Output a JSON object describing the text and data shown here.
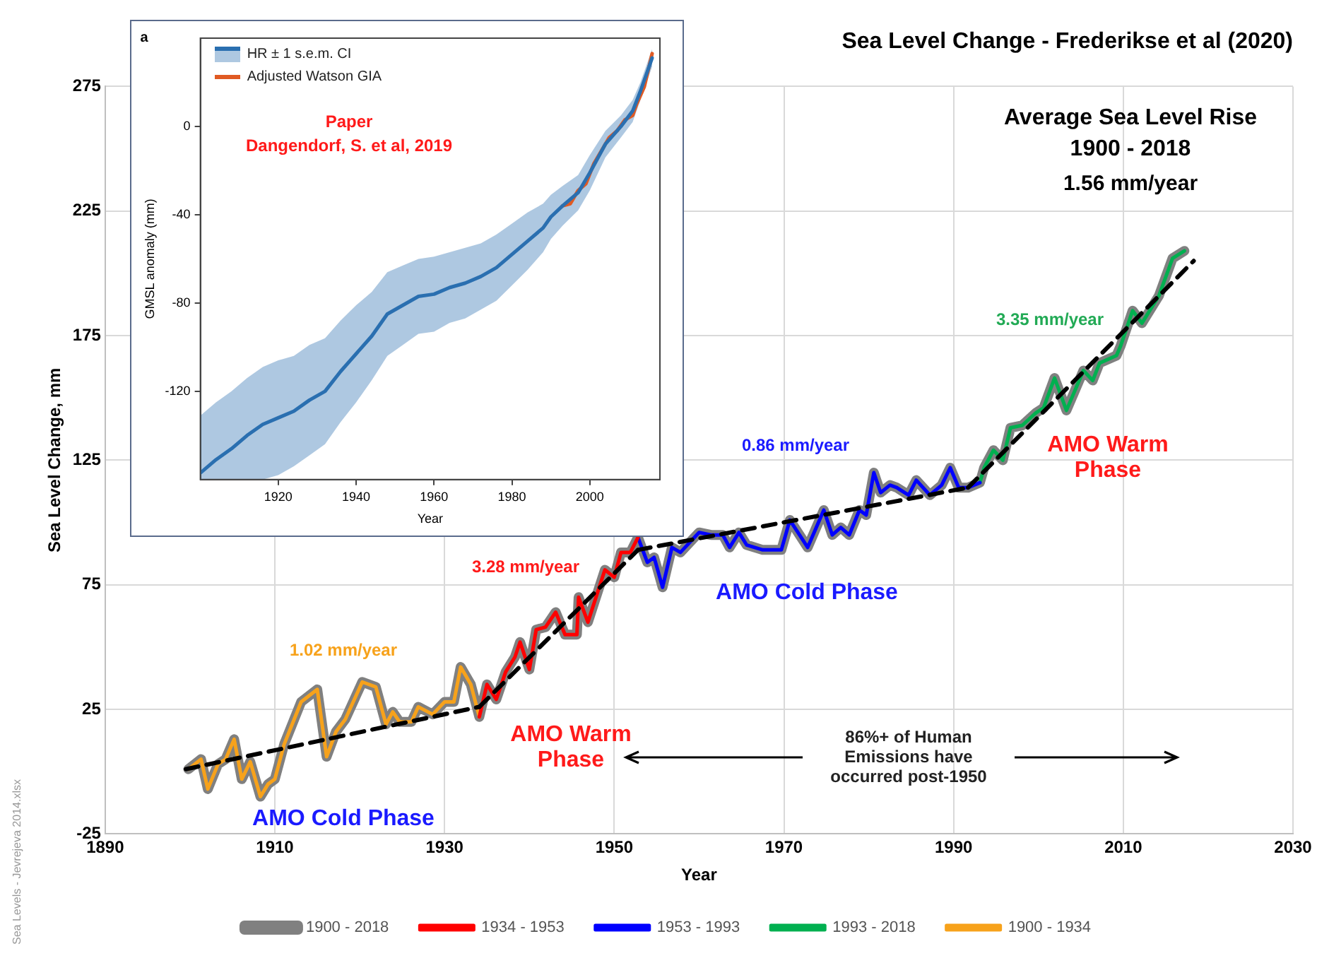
{
  "chart_data": [
    {
      "type": "line",
      "title": "Sea Level Change - Frederikse et al (2020)",
      "xlabel": "Year",
      "ylabel": "Sea Level Change, mm",
      "xlim": [
        1890,
        2030
      ],
      "xticks": [
        1890,
        1910,
        1930,
        1950,
        1970,
        1990,
        2010,
        2030
      ],
      "ylim": [
        -25,
        275
      ],
      "yticks": [
        -25,
        25,
        75,
        125,
        175,
        225,
        275
      ],
      "grid": true,
      "legend": "bottom",
      "marker": "none",
      "series": [
        {
          "name": "1900 - 2018",
          "color": "#808080",
          "x": [
            1899.8,
            1901.3,
            1902.1,
            1903.3,
            1904.2,
            1905.2,
            1906.1,
            1907.1,
            1908.3,
            1909.2,
            1910.0,
            1911.1,
            1913.1,
            1915.0,
            1916.1,
            1917.2,
            1918.3,
            1920.3,
            1921.9,
            1923.1,
            1923.9,
            1924.7,
            1926.1,
            1926.9,
            1928.6,
            1930.0,
            1931.1,
            1931.9,
            1933.1,
            1934.1,
            1935.0,
            1936.1,
            1937.2,
            1938.3,
            1938.9,
            1940.0,
            1940.8,
            1941.9,
            1943.1,
            1944.2,
            1945.6,
            1945.8,
            1946.9,
            1948.9,
            1950.0,
            1950.8,
            1951.9,
            1952.8,
            1953.9,
            1954.7,
            1955.7,
            1956.8,
            1957.8,
            1960.0,
            1961.4,
            1962.8,
            1963.6,
            1964.7,
            1965.6,
            1967.5,
            1969.7,
            1970.7,
            1972.8,
            1974.7,
            1975.7,
            1976.7,
            1977.7,
            1978.9,
            1979.7,
            1980.6,
            1981.4,
            1982.5,
            1983.3,
            1984.7,
            1985.6,
            1987.2,
            1988.6,
            1989.6,
            1990.6,
            1991.7,
            1993.1,
            1993.6,
            1994.7,
            1995.8,
            1996.7,
            1998.1,
            1999.7,
            2000.6,
            2001.9,
            2003.3,
            2005.3,
            2006.4,
            2007.2,
            2009.2,
            2009.7,
            2011.1,
            2012.2,
            2014.2,
            2015.8,
            2017.2
          ],
          "values": [
            1,
            5,
            -7,
            3,
            5,
            13,
            -3,
            4,
            -10,
            -5,
            -3,
            11,
            28,
            33,
            6,
            16,
            21,
            36,
            34,
            19,
            24,
            20,
            20,
            26,
            23,
            28,
            28,
            42,
            35,
            22,
            35,
            29,
            40,
            46,
            52,
            41,
            57,
            58,
            64,
            55,
            55,
            70,
            60,
            81,
            78,
            88,
            88,
            94,
            84,
            86,
            74,
            90,
            88,
            96,
            95,
            95,
            90,
            96,
            91,
            89,
            89,
            101,
            90,
            105,
            95,
            98,
            95,
            105,
            103,
            120,
            112,
            115,
            114,
            111,
            117,
            111,
            115,
            122,
            114,
            114,
            116,
            122,
            129,
            125,
            138,
            139,
            144,
            146,
            158,
            145,
            161,
            157,
            164,
            167,
            171,
            185,
            180,
            191,
            206,
            209
          ]
        },
        {
          "name": "1934 - 1953",
          "color": "#ff0000",
          "x": [
            1934.1,
            1935.0,
            1936.1,
            1937.2,
            1938.3,
            1938.9,
            1940.0,
            1940.8,
            1941.9,
            1943.1,
            1944.2,
            1945.6,
            1945.8,
            1946.9,
            1948.9,
            1950.0,
            1950.8,
            1951.9,
            1952.8
          ],
          "values": [
            22,
            35,
            29,
            40,
            46,
            52,
            41,
            57,
            58,
            64,
            55,
            55,
            70,
            60,
            81,
            78,
            88,
            88,
            94
          ]
        },
        {
          "name": "1953 - 1993",
          "color": "#0000ff",
          "x": [
            1952.8,
            1953.9,
            1954.7,
            1955.7,
            1956.8,
            1957.8,
            1960.0,
            1961.4,
            1962.8,
            1963.6,
            1964.7,
            1965.6,
            1967.5,
            1969.7,
            1970.7,
            1972.8,
            1974.7,
            1975.7,
            1976.7,
            1977.7,
            1978.9,
            1979.7,
            1980.6,
            1981.4,
            1982.5,
            1983.3,
            1984.7,
            1985.6,
            1987.2,
            1988.6,
            1989.6,
            1990.6,
            1991.7,
            1993.1
          ],
          "values": [
            94,
            84,
            86,
            74,
            90,
            88,
            96,
            95,
            95,
            90,
            96,
            91,
            89,
            89,
            101,
            90,
            105,
            95,
            98,
            95,
            105,
            103,
            120,
            112,
            115,
            114,
            111,
            117,
            111,
            115,
            122,
            114,
            114,
            116
          ]
        },
        {
          "name": "1993 - 2018",
          "color": "#00b050",
          "x": [
            1993.1,
            1993.6,
            1994.7,
            1995.8,
            1996.7,
            1998.1,
            1999.7,
            2000.6,
            2001.9,
            2003.3,
            2005.3,
            2006.4,
            2007.2,
            2009.2,
            2009.7,
            2011.1,
            2012.2,
            2014.2,
            2015.8,
            2017.2
          ],
          "values": [
            116,
            122,
            129,
            125,
            138,
            139,
            144,
            146,
            158,
            145,
            161,
            157,
            164,
            167,
            171,
            185,
            180,
            191,
            206,
            209
          ]
        },
        {
          "name": "1900 - 1934",
          "color": "#f7a21b",
          "x": [
            1899.8,
            1901.3,
            1902.1,
            1903.3,
            1904.2,
            1905.2,
            1906.1,
            1907.1,
            1908.3,
            1909.2,
            1910.0,
            1911.1,
            1913.1,
            1915.0,
            1916.1,
            1917.2,
            1918.3,
            1920.3,
            1921.9,
            1923.1,
            1923.9,
            1924.7,
            1926.1,
            1926.9,
            1928.6,
            1930.0,
            1931.1,
            1931.9,
            1933.1,
            1934.1
          ],
          "values": [
            1,
            5,
            -7,
            3,
            5,
            13,
            -3,
            4,
            -10,
            -5,
            -3,
            11,
            28,
            33,
            6,
            16,
            21,
            36,
            34,
            19,
            24,
            20,
            20,
            26,
            23,
            28,
            28,
            42,
            35,
            22
          ]
        },
        {
          "color": "#000000",
          "line_style": "dashed",
          "x": [
            1899.5,
            1934.1
          ],
          "values": [
            1,
            26
          ]
        },
        {
          "color": "#000000",
          "line_style": "dashed",
          "x": [
            1934.1,
            1952.8
          ],
          "values": [
            26,
            89
          ]
        },
        {
          "color": "#000000",
          "line_style": "dashed",
          "x": [
            1952.8,
            1991.7
          ],
          "values": [
            89,
            114
          ]
        },
        {
          "color": "#000000",
          "line_style": "dashed",
          "x": [
            1991.7,
            2018.3
          ],
          "values": [
            114,
            205
          ]
        }
      ],
      "annotations": [
        "1.02 mm/year",
        "3.28 mm/year",
        "0.86 mm/year",
        "3.35 mm/year",
        "AMO Cold Phase",
        "AMO Warm Phase",
        "AMO Cold Phase",
        "AMO Warm Phase",
        "86%+ of Human Emissions have occurred post-1950",
        "Average Sea Level Rise",
        "1900 - 2018",
        "1.56 mm/year",
        "Sea Levels - Jevrejeva 2014.xlsx"
      ]
    },
    {
      "type": "line",
      "xlabel": "Year",
      "ylabel": "GMSL anomaly (mm)",
      "xlim": [
        1900,
        2018
      ],
      "xticks": [
        1920,
        1940,
        1960,
        1980,
        2000
      ],
      "ylim": [
        -160,
        40
      ],
      "yticks": [
        -120,
        -80,
        -40,
        0
      ],
      "legend": "top left",
      "marker": "none",
      "series": [
        {
          "name": "HR ± 1 s.e.m. CI",
          "color": "#2a6fb0",
          "x": [
            1900,
            1904,
            1908,
            1912,
            1916,
            1920,
            1924,
            1928,
            1932,
            1936,
            1940,
            1944,
            1948,
            1952,
            1956,
            1960,
            1964,
            1968,
            1972,
            1976,
            1980,
            1984,
            1988,
            1990,
            1993,
            1997,
            2000,
            2004,
            2008,
            2011,
            2013,
            2016
          ],
          "values": [
            -157,
            -151,
            -146,
            -140,
            -135,
            -132,
            -129,
            -124,
            -120,
            -111,
            -103,
            -95,
            -85,
            -81,
            -77,
            -76,
            -73,
            -71,
            -68,
            -64,
            -58,
            -52,
            -46,
            -41,
            -36,
            -30,
            -21,
            -8,
            0,
            7,
            16,
            31
          ],
          "lower": [
            -160,
            -160,
            -160,
            -160,
            -160,
            -158,
            -154,
            -149,
            -144,
            -134,
            -125,
            -115,
            -104,
            -99,
            -94,
            -93,
            -89,
            -87,
            -83,
            -79,
            -72,
            -65,
            -57,
            -51,
            -45,
            -38,
            -29,
            -14,
            -5,
            2,
            12,
            27
          ],
          "upper": [
            -131,
            -125,
            -120,
            -114,
            -109,
            -106,
            -104,
            -99,
            -96,
            -88,
            -81,
            -75,
            -66,
            -63,
            -60,
            -59,
            -57,
            -55,
            -53,
            -49,
            -44,
            -39,
            -35,
            -31,
            -27,
            -22,
            -13,
            -2,
            5,
            12,
            20,
            35
          ]
        },
        {
          "name": "Adjusted Watson GIA",
          "color": "#e05a23",
          "x": [
            1993,
            1995,
            1997,
            1999,
            2001,
            2003,
            2005,
            2007,
            2009,
            2011,
            2012,
            2014,
            2016
          ],
          "values": [
            -36,
            -35,
            -29,
            -26,
            -17,
            -11,
            -5,
            -2,
            3,
            5,
            10,
            18,
            33
          ]
        }
      ],
      "annotations": [
        "a",
        "Paper",
        "Dangendorf, S. et al, 2019"
      ]
    }
  ]
}
